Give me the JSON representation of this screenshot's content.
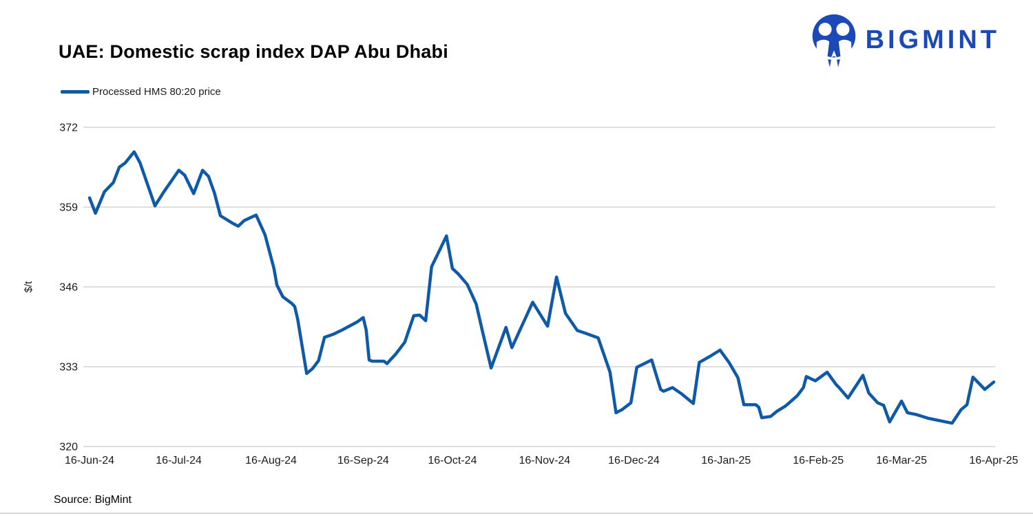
{
  "header": {
    "title": "UAE: Domestic scrap index DAP Abu Dhabi",
    "logo_text": "BIGMINT"
  },
  "legend": {
    "label": "Processed HMS 80:20 price"
  },
  "footer": {
    "source": "Source: BigMint"
  },
  "colors": {
    "line": "#0f59a9",
    "logo": "#1c49b8",
    "grid": "#d9d9d9",
    "axis_text": "#1a1a1a"
  },
  "chart_data": {
    "type": "line",
    "title": "UAE: Domestic scrap index DAP Abu Dhabi",
    "xlabel": "",
    "ylabel": "$/t",
    "ylim": [
      320,
      372
    ],
    "xlim": [
      0,
      304
    ],
    "y_ticks": [
      320,
      333,
      346,
      359,
      372
    ],
    "x_unit": "days since 16-Jun-24",
    "x_ticks": [
      {
        "label": "16-Jun-24",
        "day": 0
      },
      {
        "label": "16-Jul-24",
        "day": 30
      },
      {
        "label": "16-Aug-24",
        "day": 61
      },
      {
        "label": "16-Sep-24",
        "day": 92
      },
      {
        "label": "16-Oct-24",
        "day": 122
      },
      {
        "label": "16-Nov-24",
        "day": 153
      },
      {
        "label": "16-Dec-24",
        "day": 183
      },
      {
        "label": "16-Jan-25",
        "day": 214
      },
      {
        "label": "16-Feb-25",
        "day": 245
      },
      {
        "label": "16-Mar-25",
        "day": 273
      },
      {
        "label": "16-Apr-25",
        "day": 304
      }
    ],
    "grid": "horizontal",
    "legend_position": "top-left",
    "series": [
      {
        "name": "Processed HMS 80:20 price",
        "points": [
          [
            0,
            360.5
          ],
          [
            2,
            358
          ],
          [
            5,
            361.5
          ],
          [
            8,
            363
          ],
          [
            10,
            365.5
          ],
          [
            12,
            366.2
          ],
          [
            15,
            368
          ],
          [
            17,
            366.2
          ],
          [
            22,
            359.2
          ],
          [
            25,
            361.5
          ],
          [
            30,
            365
          ],
          [
            32,
            364.2
          ],
          [
            35,
            361.2
          ],
          [
            38,
            365
          ],
          [
            40,
            364
          ],
          [
            42,
            361.3
          ],
          [
            44,
            357.6
          ],
          [
            48,
            356.4
          ],
          [
            50,
            355.9
          ],
          [
            52,
            356.8
          ],
          [
            56,
            357.7
          ],
          [
            59,
            354.5
          ],
          [
            62,
            349
          ],
          [
            63,
            346.3
          ],
          [
            65,
            344.4
          ],
          [
            68,
            343.3
          ],
          [
            69,
            342.8
          ],
          [
            70,
            340.7
          ],
          [
            73,
            331.9
          ],
          [
            75,
            332.7
          ],
          [
            77,
            334
          ],
          [
            79,
            337.8
          ],
          [
            82,
            338.3
          ],
          [
            85,
            339
          ],
          [
            90,
            340.3
          ],
          [
            92,
            341
          ],
          [
            93,
            339
          ],
          [
            94,
            334.1
          ],
          [
            95,
            333.9
          ],
          [
            99,
            333.9
          ],
          [
            100,
            333.5
          ],
          [
            103,
            335.1
          ],
          [
            106,
            337
          ],
          [
            109,
            341.3
          ],
          [
            111,
            341.4
          ],
          [
            113,
            340.5
          ],
          [
            115,
            349.3
          ],
          [
            118,
            352.3
          ],
          [
            120,
            354.3
          ],
          [
            122,
            349
          ],
          [
            124,
            348.1
          ],
          [
            127,
            346.4
          ],
          [
            130,
            343.2
          ],
          [
            132,
            339
          ],
          [
            135,
            332.8
          ],
          [
            140,
            339.4
          ],
          [
            142,
            336.1
          ],
          [
            149,
            343.5
          ],
          [
            154,
            339.6
          ],
          [
            157,
            347.6
          ],
          [
            160,
            341.7
          ],
          [
            164,
            338.9
          ],
          [
            167,
            338.4
          ],
          [
            171,
            337.7
          ],
          [
            175,
            332.1
          ],
          [
            177,
            325.5
          ],
          [
            179,
            326
          ],
          [
            182,
            327.1
          ],
          [
            184,
            332.9
          ],
          [
            189,
            334.1
          ],
          [
            192,
            329.3
          ],
          [
            193,
            329
          ],
          [
            196,
            329.6
          ],
          [
            199,
            328.6
          ],
          [
            203,
            327
          ],
          [
            205,
            333.7
          ],
          [
            209,
            334.8
          ],
          [
            212,
            335.7
          ],
          [
            215,
            333.7
          ],
          [
            218,
            331.2
          ],
          [
            220,
            326.8
          ],
          [
            224,
            326.8
          ],
          [
            225,
            326.4
          ],
          [
            226,
            324.7
          ],
          [
            229,
            324.9
          ],
          [
            231,
            325.7
          ],
          [
            234,
            326.6
          ],
          [
            238,
            328.3
          ],
          [
            240,
            329.6
          ],
          [
            241,
            331.4
          ],
          [
            244,
            330.7
          ],
          [
            248,
            332.1
          ],
          [
            251,
            330.1
          ],
          [
            252,
            329.6
          ],
          [
            255,
            327.9
          ],
          [
            260,
            331.6
          ],
          [
            262,
            328.7
          ],
          [
            265,
            327.1
          ],
          [
            267,
            326.7
          ],
          [
            269,
            324
          ],
          [
            273,
            327.4
          ],
          [
            275,
            325.5
          ],
          [
            278,
            325.2
          ],
          [
            282,
            324.6
          ],
          [
            287,
            324.1
          ],
          [
            290,
            323.8
          ],
          [
            293,
            326
          ],
          [
            295,
            326.8
          ],
          [
            297,
            331.3
          ],
          [
            301,
            329.3
          ],
          [
            304,
            330.5
          ]
        ]
      }
    ]
  }
}
